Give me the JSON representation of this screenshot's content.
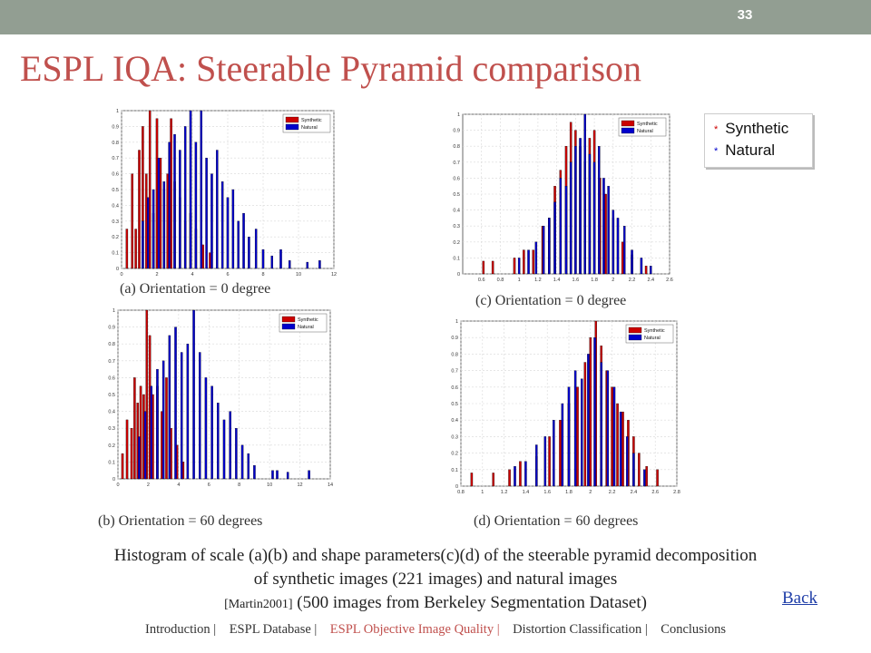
{
  "slide": {
    "page_number": "33",
    "title": "ESPL IQA: Steerable Pyramid comparison",
    "legend": {
      "synthetic": "Synthetic",
      "natural": "Natural",
      "marker": "*"
    },
    "description": {
      "line1": "Histogram of  scale (a)(b) and shape parameters(c)(d) of  the steerable pyramid decomposition",
      "line2": "of  synthetic images (221 images) and natural images",
      "ref": "[Martin2001]",
      "line3": " (500 images from Berkeley Segmentation Dataset)"
    },
    "back_label": "Back",
    "nav": [
      {
        "label": "Introduction |",
        "active": false
      },
      {
        "label": "ESPL Database |",
        "active": false
      },
      {
        "label": "ESPL Objective Image Quality |",
        "active": true
      },
      {
        "label": "Distortion Classification |",
        "active": false
      },
      {
        "label": "Conclusions",
        "active": false
      }
    ],
    "colors": {
      "topbar": "#929e92",
      "title": "#c0504d",
      "synthetic": "#cc0000",
      "natural": "#0000cc",
      "link": "#1f3ea8"
    }
  },
  "chart_data": [
    {
      "id": "a",
      "type": "bar",
      "caption": "(a) Orientation = 0 degree",
      "legend": [
        "Synthetic",
        "Natural"
      ],
      "xlim": [
        0,
        12
      ],
      "ylim": [
        0,
        1
      ],
      "xticks": [
        "0",
        "2",
        "4",
        "6",
        "8",
        "10",
        "12"
      ],
      "yticks": [
        "0",
        "0.1",
        "0.2",
        "0.3",
        "0.4",
        "0.5",
        "0.6",
        "0.7",
        "0.8",
        "0.9",
        "1"
      ],
      "series": [
        {
          "name": "Synthetic",
          "x": [
            0.3,
            0.6,
            0.8,
            1.0,
            1.2,
            1.4,
            1.6,
            1.8,
            2.0,
            2.2,
            2.4,
            2.6,
            2.8,
            3.0,
            3.3,
            3.6,
            3.9,
            4.2,
            4.6,
            5.0
          ],
          "values": [
            0.25,
            0.6,
            0.25,
            0.75,
            0.9,
            0.6,
            1.0,
            0.35,
            0.95,
            0.7,
            0.5,
            0.6,
            0.95,
            0.55,
            0.45,
            0.3,
            0.35,
            0.25,
            0.15,
            0.1
          ]
        },
        {
          "name": "Natural",
          "x": [
            1.2,
            1.5,
            1.8,
            2.1,
            2.4,
            2.7,
            3.0,
            3.3,
            3.6,
            3.9,
            4.2,
            4.5,
            4.8,
            5.1,
            5.4,
            5.7,
            6.0,
            6.3,
            6.6,
            6.9,
            7.2,
            7.6,
            8.0,
            8.5,
            9.0,
            9.5,
            10.5,
            11.2
          ],
          "values": [
            0.3,
            0.45,
            0.5,
            0.7,
            0.55,
            0.8,
            0.85,
            0.75,
            0.9,
            1.0,
            0.8,
            1.0,
            0.7,
            0.6,
            0.75,
            0.55,
            0.45,
            0.5,
            0.3,
            0.35,
            0.2,
            0.25,
            0.12,
            0.08,
            0.12,
            0.05,
            0.04,
            0.05
          ]
        }
      ]
    },
    {
      "id": "b",
      "type": "bar",
      "caption": "(b) Orientation = 60 degrees",
      "legend": [
        "Synthetic",
        "Natural"
      ],
      "xlim": [
        0,
        14
      ],
      "ylim": [
        0,
        1
      ],
      "xticks": [
        "0",
        "2",
        "4",
        "6",
        "8",
        "10",
        "12",
        "14"
      ],
      "yticks": [
        "0",
        "0.1",
        "0.2",
        "0.3",
        "0.4",
        "0.5",
        "0.6",
        "0.7",
        "0.8",
        "0.9",
        "1"
      ],
      "series": [
        {
          "name": "Synthetic",
          "x": [
            0.3,
            0.6,
            0.9,
            1.1,
            1.3,
            1.5,
            1.7,
            1.9,
            2.1,
            2.3,
            2.6,
            2.9,
            3.2,
            3.5,
            3.9,
            4.3
          ],
          "values": [
            0.15,
            0.35,
            0.3,
            0.6,
            0.45,
            0.55,
            0.5,
            1.0,
            0.85,
            0.5,
            0.55,
            0.4,
            0.6,
            0.3,
            0.2,
            0.1
          ]
        },
        {
          "name": "Natural",
          "x": [
            1.4,
            1.8,
            2.2,
            2.6,
            3.0,
            3.4,
            3.8,
            4.2,
            4.6,
            5.0,
            5.4,
            5.8,
            6.2,
            6.6,
            7.0,
            7.4,
            7.8,
            8.2,
            8.6,
            9.0,
            10.2,
            10.5,
            11.2,
            12.6
          ],
          "values": [
            0.25,
            0.4,
            0.55,
            0.65,
            0.7,
            0.85,
            0.9,
            0.75,
            0.8,
            1.0,
            0.75,
            0.6,
            0.55,
            0.45,
            0.35,
            0.4,
            0.3,
            0.2,
            0.15,
            0.08,
            0.05,
            0.05,
            0.04,
            0.05
          ]
        }
      ]
    },
    {
      "id": "c",
      "type": "bar",
      "caption": "(c) Orientation = 0 degree",
      "legend": [
        "Synthetic",
        "Natural"
      ],
      "xlim": [
        0.4,
        2.6
      ],
      "ylim": [
        0,
        1
      ],
      "xticks": [
        "0.6",
        "0.8",
        "1",
        "1.2",
        "1.4",
        "1.6",
        "1.8",
        "2",
        "2.2",
        "2.4",
        "2.6"
      ],
      "yticks": [
        "0",
        "0.1",
        "0.2",
        "0.3",
        "0.4",
        "0.5",
        "0.6",
        "0.7",
        "0.8",
        "0.9",
        "1"
      ],
      "series": [
        {
          "name": "Synthetic",
          "x": [
            0.62,
            0.72,
            0.95,
            1.05,
            1.15,
            1.25,
            1.32,
            1.38,
            1.44,
            1.5,
            1.55,
            1.6,
            1.65,
            1.7,
            1.75,
            1.8,
            1.86,
            1.92,
            2.0,
            2.1,
            2.2,
            2.35
          ],
          "values": [
            0.08,
            0.08,
            0.1,
            0.15,
            0.15,
            0.3,
            0.35,
            0.55,
            0.65,
            0.8,
            0.95,
            0.9,
            0.8,
            0.7,
            0.85,
            0.9,
            0.6,
            0.5,
            0.35,
            0.2,
            0.12,
            0.05
          ]
        },
        {
          "name": "Natural",
          "x": [
            1.0,
            1.1,
            1.18,
            1.26,
            1.32,
            1.38,
            1.44,
            1.5,
            1.55,
            1.6,
            1.65,
            1.7,
            1.75,
            1.8,
            1.85,
            1.9,
            1.95,
            2.0,
            2.05,
            2.12,
            2.2,
            2.3,
            2.4
          ],
          "values": [
            0.1,
            0.15,
            0.2,
            0.3,
            0.35,
            0.45,
            0.6,
            0.55,
            0.7,
            0.8,
            0.85,
            1.0,
            0.75,
            0.7,
            0.8,
            0.6,
            0.55,
            0.4,
            0.35,
            0.3,
            0.15,
            0.1,
            0.05
          ]
        }
      ]
    },
    {
      "id": "d",
      "type": "bar",
      "caption": "(d) Orientation = 60 degrees",
      "legend": [
        "Synthetic",
        "Natural"
      ],
      "xlim": [
        0.8,
        2.8
      ],
      "ylim": [
        0,
        1
      ],
      "xticks": [
        "0.8",
        "1",
        "1.2",
        "1.4",
        "1.6",
        "1.8",
        "2",
        "2.2",
        "2.4",
        "2.6",
        "2.8"
      ],
      "yticks": [
        "0",
        "0.1",
        "0.2",
        "0.3",
        "0.4",
        "0.5",
        "0.6",
        "0.7",
        "0.8",
        "0.9",
        "1"
      ],
      "series": [
        {
          "name": "Synthetic",
          "x": [
            0.9,
            1.1,
            1.25,
            1.35,
            1.5,
            1.62,
            1.72,
            1.8,
            1.88,
            1.95,
            2.0,
            2.05,
            2.1,
            2.15,
            2.2,
            2.25,
            2.3,
            2.35,
            2.4,
            2.45,
            2.52,
            2.62
          ],
          "values": [
            0.08,
            0.08,
            0.1,
            0.15,
            0.18,
            0.3,
            0.4,
            0.5,
            0.6,
            0.75,
            0.9,
            1.0,
            0.85,
            0.7,
            0.6,
            0.5,
            0.45,
            0.4,
            0.3,
            0.2,
            0.12,
            0.1
          ]
        },
        {
          "name": "Natural",
          "x": [
            1.3,
            1.4,
            1.5,
            1.58,
            1.66,
            1.74,
            1.8,
            1.86,
            1.92,
            1.98,
            2.04,
            2.1,
            2.16,
            2.22,
            2.28,
            2.34,
            2.4,
            2.5
          ],
          "values": [
            0.12,
            0.15,
            0.25,
            0.3,
            0.4,
            0.5,
            0.6,
            0.7,
            0.65,
            0.8,
            0.9,
            0.75,
            0.7,
            0.6,
            0.45,
            0.3,
            0.2,
            0.1
          ]
        }
      ]
    }
  ]
}
